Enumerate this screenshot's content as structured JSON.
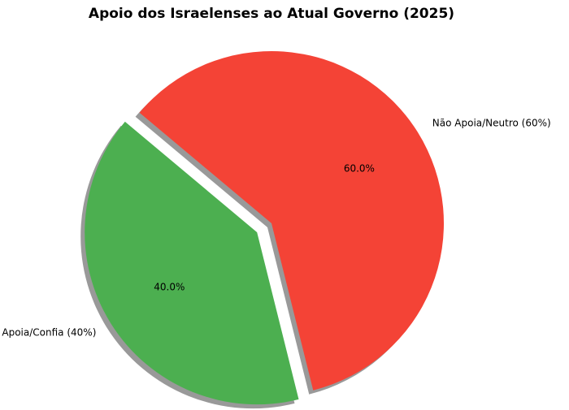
{
  "chart_data": {
    "type": "pie",
    "title": "Apoio dos Israelenses ao Atual Governo (2025)",
    "slices": [
      {
        "label": "Apoia/Confia (40%)",
        "value": 40,
        "percent_label": "40.0%",
        "color": "#4caf50",
        "exploded": true
      },
      {
        "label": "Não Apoia/Neutro (60%)",
        "value": 60,
        "percent_label": "60.0%",
        "color": "#f44336",
        "exploded": false
      }
    ],
    "start_angle_deg": 140,
    "shadow": true,
    "legend": "none"
  }
}
